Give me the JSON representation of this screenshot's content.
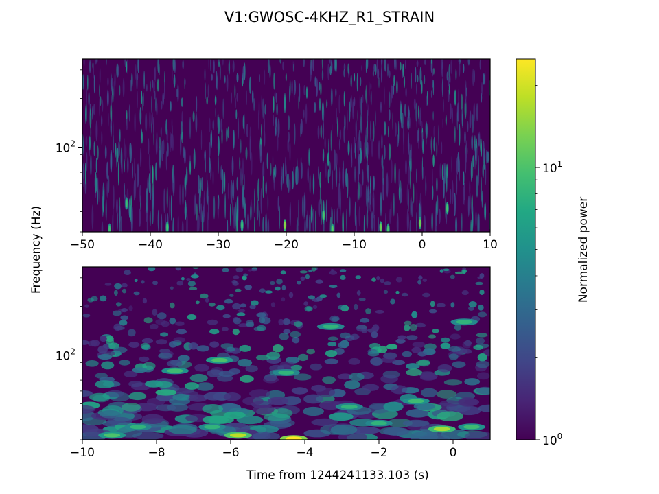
{
  "figure": {
    "title": "V1:GWOSC-4KHZ_R1_STRAIN",
    "ylabel": "Frequency (Hz)",
    "xlabel": "Time from 1244241133.103 (s)"
  },
  "chart_data": [
    {
      "type": "heatmap",
      "panel": "top",
      "x_ticks": [
        -50,
        -40,
        -30,
        -20,
        -10,
        0,
        10
      ],
      "x_tick_labels": [
        "−50",
        "−40",
        "−30",
        "−20",
        "−10",
        "0",
        "10"
      ],
      "xlim": [
        -50,
        10
      ],
      "yscale": "log",
      "ylim": [
        30,
        350
      ],
      "y_tick_major": {
        "value": 100,
        "base": "10",
        "exp": "2"
      },
      "y_minor_ticks": [
        30,
        40,
        50,
        60,
        70,
        80,
        90,
        200,
        300
      ],
      "hotspots": [
        {
          "t": -20.2,
          "f": 33,
          "p": 14
        },
        {
          "t": -14.5,
          "f": 38,
          "p": 10
        },
        {
          "t": -13.2,
          "f": 31,
          "p": 11
        },
        {
          "t": -6.1,
          "f": 32,
          "p": 12
        },
        {
          "t": -0.3,
          "f": 34,
          "p": 12
        },
        {
          "t": -43.5,
          "f": 45,
          "p": 9
        },
        {
          "t": -37.5,
          "f": 32,
          "p": 10
        },
        {
          "t": -26.5,
          "f": 33,
          "p": 9
        },
        {
          "t": 3.7,
          "f": 42,
          "p": 10
        },
        {
          "t": -46.0,
          "f": 31,
          "p": 9
        },
        {
          "t": -5.0,
          "f": 31,
          "p": 10
        }
      ]
    },
    {
      "type": "heatmap",
      "panel": "bottom",
      "x_ticks": [
        -10,
        -8,
        -6,
        -4,
        -2,
        0
      ],
      "x_tick_labels": [
        "−10",
        "−8",
        "−6",
        "−4",
        "−2",
        "0"
      ],
      "xlim": [
        -10,
        1
      ],
      "yscale": "log",
      "ylim": [
        30,
        350
      ],
      "y_tick_major": {
        "value": 100,
        "base": "10",
        "exp": "2"
      },
      "y_minor_ticks": [
        30,
        40,
        50,
        60,
        70,
        80,
        90,
        200,
        300
      ],
      "hotspots": [
        {
          "t": -4.3,
          "f": 30.5,
          "p": 25
        },
        {
          "t": -5.8,
          "f": 32,
          "p": 18
        },
        {
          "t": -0.3,
          "f": 35,
          "p": 16
        },
        {
          "t": -8.5,
          "f": 36,
          "p": 8
        },
        {
          "t": -6.5,
          "f": 36,
          "p": 8
        },
        {
          "t": -2.0,
          "f": 38,
          "p": 8
        },
        {
          "t": 0.5,
          "f": 36,
          "p": 9
        },
        {
          "t": -9.2,
          "f": 32,
          "p": 10
        },
        {
          "t": -7.5,
          "f": 80,
          "p": 9
        },
        {
          "t": -6.3,
          "f": 93,
          "p": 10
        },
        {
          "t": -4.5,
          "f": 78,
          "p": 8
        },
        {
          "t": -3.3,
          "f": 150,
          "p": 8
        },
        {
          "t": -1.0,
          "f": 52,
          "p": 9
        },
        {
          "t": -2.8,
          "f": 48,
          "p": 8
        },
        {
          "t": 0.3,
          "f": 160,
          "p": 8
        }
      ]
    }
  ],
  "colorbar": {
    "label": "Normalized power",
    "scale": "log",
    "range": [
      1,
      25
    ],
    "colormap": "viridis",
    "tick_major": [
      {
        "value": 1,
        "base": "10",
        "exp": "0"
      },
      {
        "value": 10,
        "base": "10",
        "exp": "1"
      }
    ],
    "tick_minor": [
      2,
      3,
      4,
      5,
      6,
      7,
      8,
      9,
      20
    ]
  },
  "colors": {
    "low": "#440154",
    "mid": "#21918c",
    "high": "#fde725"
  }
}
